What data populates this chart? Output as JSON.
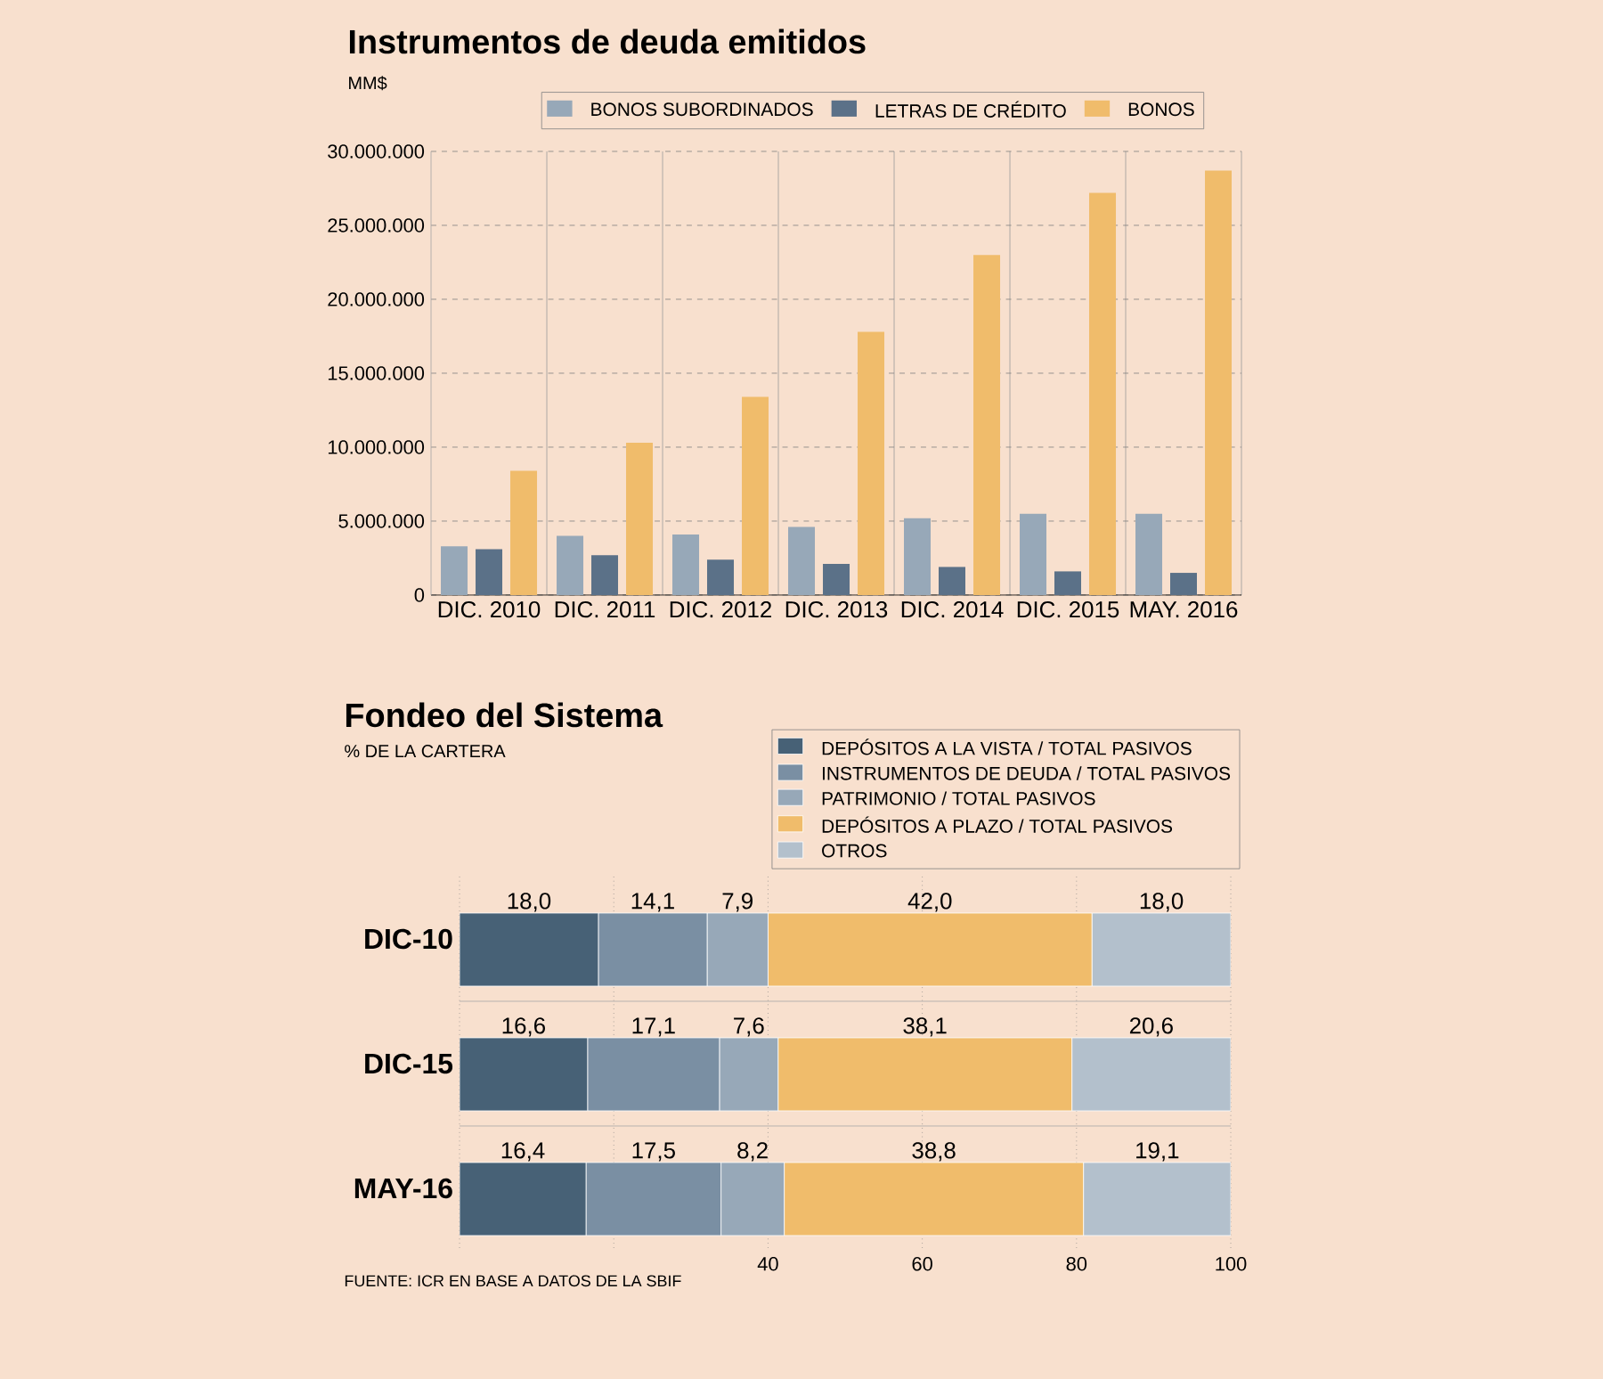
{
  "chart_data": [
    {
      "type": "bar",
      "title": "Instrumentos de deuda emitidos",
      "ylabel": "MM$",
      "categories": [
        "DIC. 2010",
        "DIC. 2011",
        "DIC. 2012",
        "DIC. 2013",
        "DIC. 2014",
        "DIC. 2015",
        "MAY. 2016"
      ],
      "series": [
        {
          "name": "BONOS SUBORDINADOS",
          "color": "#97a8b8",
          "values": [
            3300000,
            4000000,
            4100000,
            4600000,
            5200000,
            5500000,
            5500000
          ]
        },
        {
          "name": "LETRAS DE CRÉDITO",
          "color": "#5b7188",
          "values": [
            3100000,
            2700000,
            2400000,
            2100000,
            1900000,
            1600000,
            1500000
          ]
        },
        {
          "name": "BONOS",
          "color": "#f0bc6b",
          "values": [
            8400000,
            10300000,
            13400000,
            17800000,
            23000000,
            27200000,
            28700000
          ]
        }
      ],
      "ylim": [
        0,
        30000000
      ],
      "yticks": [
        0,
        {
          "value": 5000000,
          "label": "5.000.000"
        },
        {
          "value": 10000000,
          "label": "10.000.000"
        },
        {
          "value": 15000000,
          "label": "15.000.000"
        },
        {
          "value": 20000000,
          "label": "20.000.000"
        },
        {
          "value": 25000000,
          "label": "25.000.000"
        },
        {
          "value": 30000000,
          "label": "30.000.000"
        }
      ],
      "grid": true,
      "legend": "top"
    },
    {
      "type": "bar",
      "orientation": "horizontal",
      "stacked": true,
      "title": "Fondeo del Sistema",
      "subtitle": "% DE LA CARTERA",
      "categories": [
        "DIC-10",
        "DIC-15",
        "MAY-16"
      ],
      "series": [
        {
          "name": "DEPÓSITOS A LA VISTA / TOTAL PASIVOS",
          "color": "#476176",
          "values": [
            18.0,
            16.6,
            16.4
          ],
          "value_labels": [
            "18,0",
            "16,6",
            "16,4"
          ]
        },
        {
          "name": "INSTRUMENTOS DE DEUDA / TOTAL PASIVOS",
          "color": "#7a8fa3",
          "values": [
            14.1,
            17.1,
            17.5
          ],
          "value_labels": [
            "14,1",
            "17,1",
            "17,5"
          ]
        },
        {
          "name": "PATRIMONIO / TOTAL PASIVOS",
          "color": "#97a8b8",
          "values": [
            7.9,
            7.6,
            8.2
          ],
          "value_labels": [
            "7,9",
            "7,6",
            "8,2"
          ]
        },
        {
          "name": "DEPÓSITOS A PLAZO / TOTAL PASIVOS",
          "color": "#f0bc6b",
          "values": [
            42.0,
            38.1,
            38.8
          ],
          "value_labels": [
            "42,0",
            "38,1",
            "38,8"
          ]
        },
        {
          "name": "OTROS",
          "color": "#b3c0cc",
          "values": [
            18.0,
            20.6,
            19.1
          ],
          "value_labels": [
            "18,0",
            "20,6",
            "19,1"
          ]
        }
      ],
      "xlim": [
        0,
        100
      ],
      "xticks": [
        {
          "value": 0,
          "label": null
        },
        {
          "value": 20,
          "label": null
        },
        40,
        60,
        80,
        100
      ],
      "grid": "x",
      "legend": "top right",
      "annotations": [
        "FUENTE: ICR EN BASE A DATOS DE LA SBIF"
      ]
    }
  ]
}
